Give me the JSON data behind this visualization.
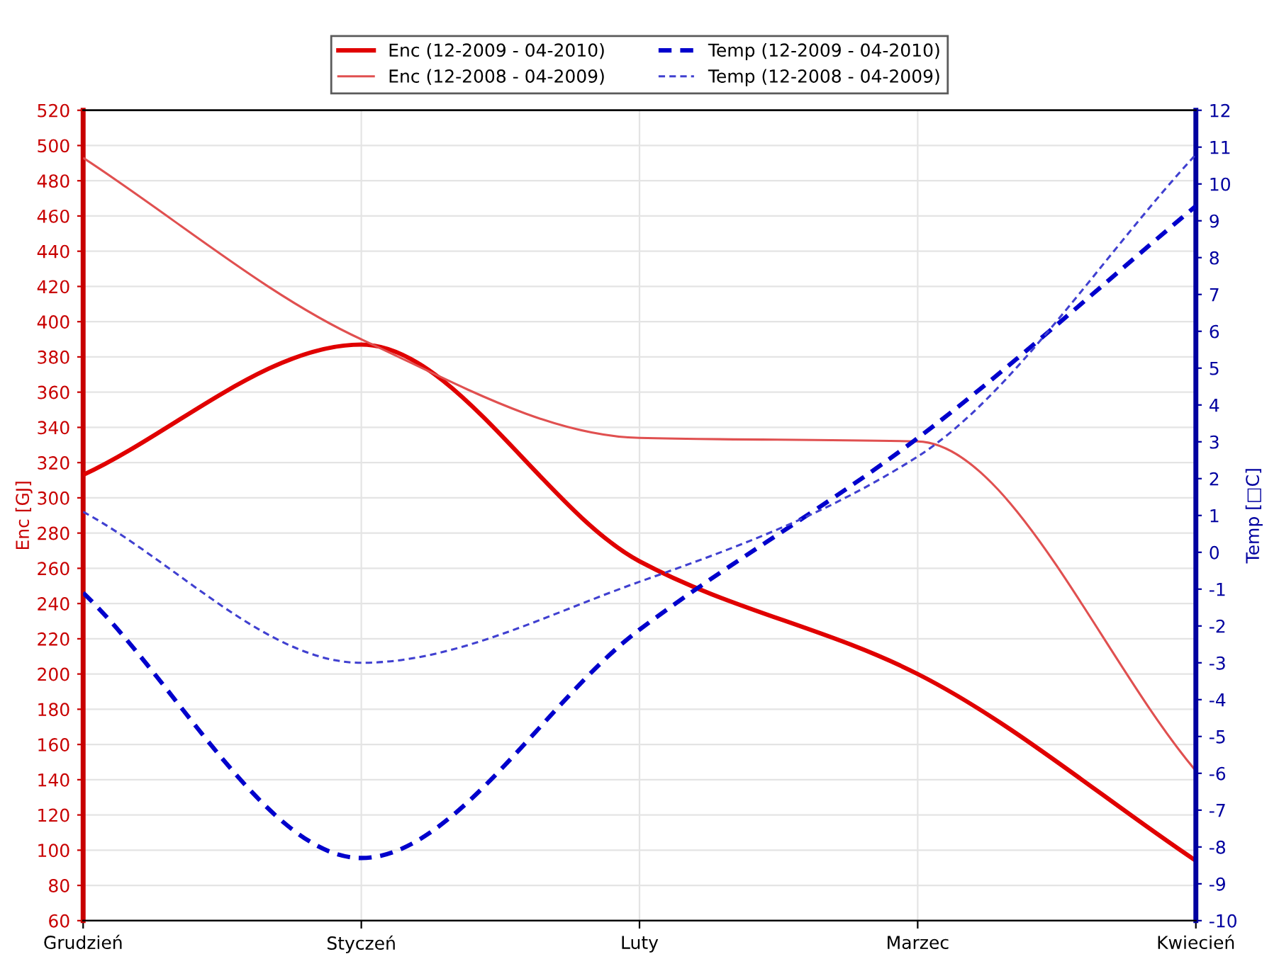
{
  "chart_data": {
    "type": "line",
    "categories": [
      "Grudzień",
      "Styczeń",
      "Luty",
      "Marzec",
      "Kwiecień"
    ],
    "ylabel": "Enc [GJ]",
    "y2label": "Temp [□C]",
    "ylim": [
      60,
      520
    ],
    "yticks": [
      60,
      80,
      100,
      120,
      140,
      160,
      180,
      200,
      220,
      240,
      260,
      280,
      300,
      320,
      340,
      360,
      380,
      400,
      420,
      440,
      460,
      480,
      500,
      520
    ],
    "y2lim": [
      -10,
      12
    ],
    "y2ticks": [
      -10,
      -9,
      -8,
      -7,
      -6,
      -5,
      -4,
      -3,
      -2,
      -1,
      0,
      1,
      2,
      3,
      4,
      5,
      6,
      7,
      8,
      9,
      10,
      11,
      12
    ],
    "grid": true,
    "legend": "top",
    "marker": "none",
    "series": [
      {
        "name": "Enc (12-2009 - 04-2010)",
        "color": "#e00000",
        "line_style": "solid",
        "values": [
          313,
          387,
          264,
          200,
          94
        ]
      },
      {
        "name": "Enc (12-2008 - 04-2009)",
        "color": "#e05050",
        "line_style": "solid",
        "values": [
          493,
          390,
          334,
          332,
          145
        ]
      },
      {
        "name": "Temp (12-2009 - 04-2010)",
        "color": "#0000cc",
        "line_style": "dashed",
        "axis": "y2",
        "values": [
          -1.1,
          -8.3,
          -2.1,
          3.1,
          9.4
        ]
      },
      {
        "name": "Temp (12-2008 - 04-2009)",
        "color": "#4040d0",
        "line_style": "dashed",
        "axis": "y2",
        "values": [
          1.1,
          -3.0,
          -0.8,
          2.6,
          10.8
        ]
      }
    ]
  }
}
